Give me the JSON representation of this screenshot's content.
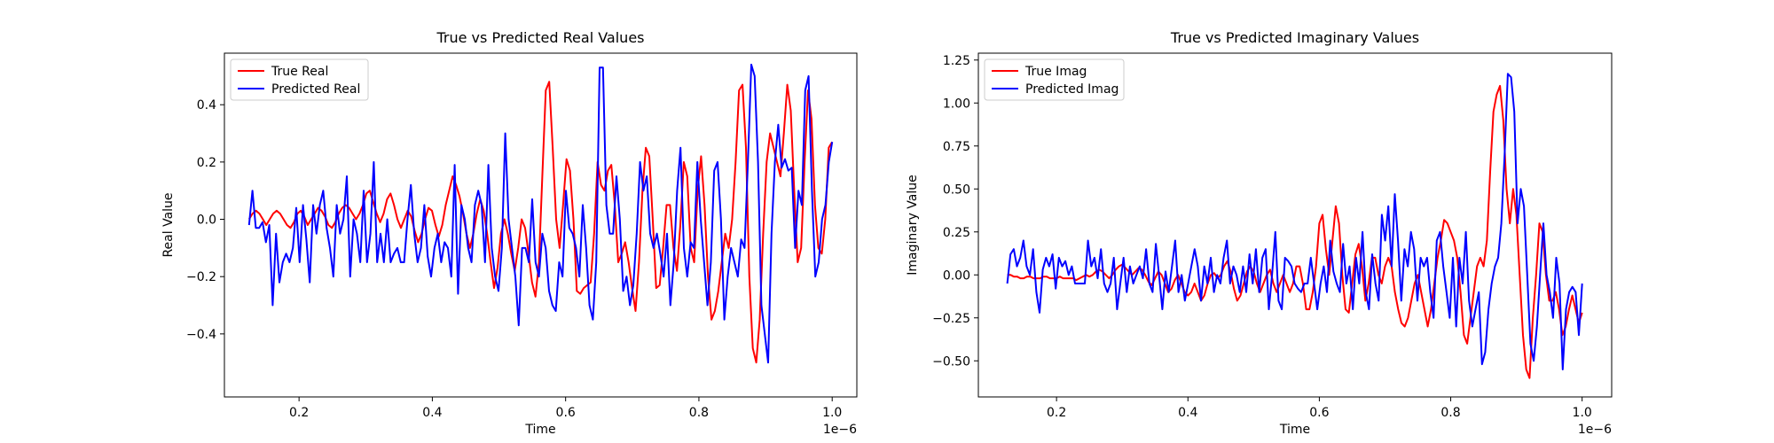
{
  "chart_data": [
    {
      "type": "line",
      "title": "True vs Predicted Real Values",
      "xlabel": "Time",
      "ylabel": "Real Value",
      "x_offset_label": "1e−6",
      "xlim": [
        0.088,
        1.037
      ],
      "ylim": [
        -0.62,
        0.58
      ],
      "xticks": [
        0.2,
        0.4,
        0.6,
        0.8,
        1.0
      ],
      "xtick_labels": [
        "0.2",
        "0.4",
        "0.6",
        "0.8",
        "1.0"
      ],
      "yticks": [
        -0.4,
        -0.2,
        0.0,
        0.2,
        0.4
      ],
      "ytick_labels": [
        "−0.4",
        "−0.2",
        "0.0",
        "0.2",
        "0.4"
      ],
      "grid": false,
      "legend_position": "top-left",
      "x_start": 0.125,
      "x_end": 1.0,
      "series": [
        {
          "name": "True Real",
          "color": "#ff0000",
          "values": [
            0.0,
            0.02,
            0.03,
            0.02,
            0.0,
            -0.02,
            0.0,
            0.02,
            0.03,
            0.02,
            0.0,
            -0.02,
            -0.03,
            -0.01,
            0.02,
            0.03,
            0.01,
            -0.02,
            0.0,
            0.02,
            0.04,
            0.03,
            0.01,
            -0.02,
            -0.03,
            -0.01,
            0.02,
            0.04,
            0.05,
            0.04,
            0.02,
            0.0,
            0.02,
            0.05,
            0.09,
            0.1,
            0.06,
            0.02,
            -0.01,
            0.02,
            0.07,
            0.09,
            0.05,
            0.0,
            -0.03,
            0.0,
            0.03,
            0.01,
            -0.04,
            -0.08,
            -0.05,
            0.0,
            0.04,
            0.03,
            -0.02,
            -0.06,
            -0.02,
            0.05,
            0.1,
            0.15,
            0.12,
            0.08,
            0.02,
            -0.05,
            -0.1,
            -0.05,
            0.02,
            0.07,
            0.03,
            -0.05,
            -0.15,
            -0.24,
            -0.17,
            -0.05,
            0.0,
            -0.05,
            -0.12,
            -0.18,
            -0.1,
            0.0,
            -0.03,
            -0.12,
            -0.22,
            -0.27,
            -0.15,
            0.15,
            0.45,
            0.48,
            0.25,
            0.0,
            -0.1,
            0.05,
            0.21,
            0.17,
            0.0,
            -0.25,
            -0.26,
            -0.24,
            -0.23,
            -0.22,
            -0.05,
            0.2,
            0.12,
            0.1,
            0.17,
            0.19,
            0.05,
            -0.15,
            -0.12,
            -0.08,
            -0.15,
            -0.24,
            -0.32,
            -0.15,
            0.1,
            0.25,
            0.22,
            0.0,
            -0.24,
            -0.23,
            -0.1,
            0.05,
            0.05,
            -0.1,
            -0.18,
            -0.02,
            0.2,
            0.15,
            -0.1,
            -0.15,
            0.1,
            0.22,
            0.05,
            -0.2,
            -0.35,
            -0.32,
            -0.25,
            -0.15,
            -0.05,
            -0.1,
            0.0,
            0.2,
            0.45,
            0.47,
            0.25,
            -0.2,
            -0.45,
            -0.5,
            -0.35,
            -0.05,
            0.2,
            0.3,
            0.25,
            0.2,
            0.15,
            0.3,
            0.47,
            0.38,
            0.1,
            -0.15,
            -0.1,
            0.2,
            0.45,
            0.35,
            0.05,
            -0.1,
            -0.12,
            0.0,
            0.25,
            0.27
          ]
        },
        {
          "name": "Predicted Real",
          "color": "#0000ff",
          "values": [
            -0.02,
            0.1,
            -0.03,
            -0.03,
            -0.01,
            -0.08,
            -0.02,
            -0.3,
            -0.05,
            -0.22,
            -0.15,
            -0.12,
            -0.15,
            -0.1,
            0.04,
            -0.15,
            0.05,
            -0.07,
            -0.22,
            0.05,
            -0.05,
            0.05,
            0.1,
            -0.03,
            -0.1,
            -0.2,
            0.05,
            -0.05,
            0.0,
            0.15,
            -0.2,
            0.0,
            -0.05,
            -0.15,
            0.1,
            -0.15,
            -0.05,
            0.2,
            -0.15,
            -0.05,
            -0.15,
            0.0,
            -0.15,
            -0.12,
            -0.1,
            -0.15,
            -0.15,
            0.0,
            0.12,
            -0.05,
            -0.15,
            -0.1,
            0.05,
            -0.13,
            -0.2,
            -0.1,
            -0.05,
            -0.15,
            -0.08,
            -0.1,
            -0.2,
            0.19,
            -0.26,
            0.05,
            0.0,
            -0.1,
            -0.15,
            0.05,
            0.1,
            0.05,
            -0.15,
            0.19,
            -0.1,
            -0.2,
            -0.25,
            -0.1,
            0.3,
            0.0,
            -0.1,
            -0.2,
            -0.37,
            -0.1,
            -0.1,
            -0.15,
            0.07,
            -0.15,
            -0.2,
            -0.05,
            -0.1,
            -0.25,
            -0.3,
            -0.32,
            -0.15,
            -0.2,
            0.1,
            -0.03,
            -0.05,
            -0.1,
            -0.2,
            0.05,
            -0.1,
            -0.3,
            -0.35,
            -0.15,
            0.53,
            0.53,
            0.05,
            -0.05,
            -0.05,
            0.15,
            0.0,
            -0.25,
            -0.2,
            -0.3,
            -0.23,
            -0.05,
            0.2,
            0.1,
            0.15,
            -0.05,
            -0.1,
            -0.05,
            -0.12,
            -0.2,
            -0.05,
            -0.3,
            -0.15,
            0.1,
            0.25,
            -0.1,
            -0.2,
            -0.08,
            -0.1,
            0.2,
            0.0,
            -0.15,
            -0.3,
            -0.15,
            0.17,
            0.2,
            0.0,
            -0.35,
            -0.2,
            -0.1,
            -0.15,
            -0.2,
            -0.07,
            -0.1,
            0.2,
            0.54,
            0.5,
            0.2,
            -0.3,
            -0.4,
            -0.5,
            -0.05,
            0.2,
            0.33,
            0.18,
            0.21,
            0.17,
            0.18,
            -0.1,
            0.1,
            0.05,
            0.45,
            0.5,
            0.1,
            -0.2,
            -0.15,
            0.0,
            0.05,
            0.2,
            0.27
          ]
        }
      ]
    },
    {
      "type": "line",
      "title": "True vs Predicted Imaginary Values",
      "xlabel": "Time",
      "ylabel": "Imaginary Value",
      "x_offset_label": "1e−6",
      "xlim": [
        0.081,
        1.045
      ],
      "ylim": [
        -0.71,
        1.29
      ],
      "xticks": [
        0.2,
        0.4,
        0.6,
        0.8,
        1.0
      ],
      "xtick_labels": [
        "0.2",
        "0.4",
        "0.6",
        "0.8",
        "1.0"
      ],
      "yticks": [
        -0.5,
        -0.25,
        0.0,
        0.25,
        0.5,
        0.75,
        1.0,
        1.25
      ],
      "ytick_labels": [
        "−0.50",
        "−0.25",
        "0.00",
        "0.25",
        "0.50",
        "0.75",
        "1.00",
        "1.25"
      ],
      "grid": false,
      "legend_position": "top-left",
      "x_start": 0.125,
      "x_end": 1.0,
      "series": [
        {
          "name": "True Imag",
          "color": "#ff0000",
          "values": [
            0.0,
            0.0,
            -0.01,
            -0.01,
            -0.02,
            -0.02,
            -0.01,
            -0.01,
            -0.02,
            -0.02,
            -0.02,
            -0.01,
            -0.01,
            -0.02,
            -0.02,
            -0.02,
            -0.01,
            -0.02,
            -0.02,
            -0.02,
            -0.02,
            -0.03,
            -0.02,
            -0.01,
            0.0,
            -0.01,
            0.0,
            0.02,
            0.03,
            0.02,
            0.0,
            -0.02,
            0.0,
            0.03,
            0.05,
            0.06,
            0.04,
            0.02,
            0.0,
            0.02,
            0.04,
            0.03,
            0.0,
            -0.04,
            -0.06,
            -0.02,
            0.02,
            0.0,
            -0.05,
            -0.1,
            -0.08,
            -0.03,
            0.0,
            -0.05,
            -0.1,
            -0.12,
            -0.1,
            -0.05,
            -0.1,
            -0.15,
            -0.12,
            -0.05,
            0.0,
            0.01,
            -0.02,
            0.0,
            0.05,
            0.08,
            0.02,
            -0.08,
            -0.15,
            -0.12,
            -0.05,
            0.02,
            0.05,
            0.02,
            -0.05,
            -0.1,
            -0.05,
            0.0,
            0.03,
            -0.05,
            -0.1,
            -0.05,
            0.0,
            -0.05,
            -0.1,
            -0.05,
            0.05,
            0.05,
            -0.05,
            -0.2,
            -0.2,
            -0.1,
            0.05,
            0.3,
            0.35,
            0.15,
            0.0,
            0.2,
            0.4,
            0.3,
            0.0,
            -0.2,
            -0.22,
            -0.05,
            0.12,
            0.18,
            0.05,
            -0.15,
            -0.05,
            0.1,
            0.1,
            0.0,
            -0.05,
            0.05,
            0.1,
            0.05,
            -0.1,
            -0.2,
            -0.28,
            -0.3,
            -0.25,
            -0.15,
            -0.05,
            0.0,
            -0.1,
            -0.2,
            -0.3,
            -0.2,
            -0.05,
            0.1,
            0.2,
            0.32,
            0.3,
            0.25,
            0.2,
            0.1,
            -0.1,
            -0.35,
            -0.4,
            -0.25,
            -0.1,
            0.05,
            0.1,
            0.05,
            0.2,
            0.6,
            0.95,
            1.05,
            1.1,
            0.9,
            0.5,
            0.3,
            0.5,
            0.35,
            0.0,
            -0.35,
            -0.55,
            -0.6,
            -0.25,
            0.0,
            0.3,
            0.25,
            0.0,
            -0.15,
            -0.15,
            -0.1,
            -0.2,
            -0.35,
            -0.3,
            -0.2,
            -0.12,
            -0.2,
            -0.28,
            -0.22
          ]
        },
        {
          "name": "Predicted Imag",
          "color": "#0000ff",
          "values": [
            -0.05,
            0.12,
            0.15,
            0.05,
            0.1,
            0.2,
            0.05,
            0.0,
            0.15,
            -0.1,
            -0.22,
            0.03,
            0.1,
            0.05,
            0.12,
            -0.08,
            0.1,
            0.05,
            0.08,
            0.0,
            0.05,
            -0.05,
            -0.05,
            -0.05,
            -0.05,
            0.2,
            0.05,
            0.1,
            -0.02,
            0.15,
            -0.05,
            -0.1,
            -0.05,
            0.1,
            -0.2,
            -0.05,
            0.1,
            -0.1,
            0.05,
            -0.05,
            0.0,
            0.05,
            -0.02,
            0.15,
            -0.05,
            -0.1,
            0.18,
            0.0,
            -0.2,
            0.02,
            -0.1,
            0.05,
            0.2,
            -0.1,
            0.0,
            -0.15,
            -0.05,
            0.05,
            0.15,
            0.05,
            -0.15,
            0.05,
            -0.05,
            0.1,
            -0.1,
            0.0,
            -0.05,
            0.1,
            0.2,
            -0.05,
            0.05,
            0.0,
            -0.1,
            0.05,
            -0.1,
            0.12,
            -0.05,
            0.15,
            -0.1,
            0.1,
            0.15,
            -0.2,
            0.0,
            0.25,
            -0.15,
            -0.2,
            0.1,
            0.08,
            0.05,
            -0.05,
            -0.08,
            -0.1,
            -0.05,
            -0.05,
            0.1,
            -0.05,
            -0.2,
            -0.05,
            0.05,
            -0.1,
            0.2,
            0.02,
            -0.05,
            -0.1,
            0.18,
            -0.05,
            0.05,
            -0.2,
            0.1,
            -0.05,
            0.25,
            -0.1,
            -0.2,
            0.12,
            -0.05,
            -0.15,
            0.35,
            0.2,
            0.4,
            0.05,
            0.47,
            0.2,
            -0.15,
            0.15,
            0.05,
            0.25,
            0.15,
            -0.15,
            0.1,
            0.05,
            0.1,
            -0.1,
            -0.25,
            0.2,
            0.25,
            0.05,
            -0.1,
            -0.25,
            0.1,
            -0.3,
            0.1,
            -0.05,
            0.25,
            -0.15,
            -0.3,
            -0.2,
            -0.1,
            -0.52,
            -0.45,
            -0.2,
            -0.05,
            0.05,
            0.1,
            0.3,
            0.7,
            1.17,
            1.15,
            0.95,
            0.3,
            0.5,
            0.4,
            0.0,
            -0.4,
            -0.5,
            -0.3,
            0.0,
            0.3,
            0.0,
            -0.1,
            -0.25,
            0.1,
            -0.05,
            -0.55,
            -0.2,
            -0.1,
            -0.07,
            -0.1,
            -0.35,
            -0.05
          ]
        }
      ]
    }
  ]
}
